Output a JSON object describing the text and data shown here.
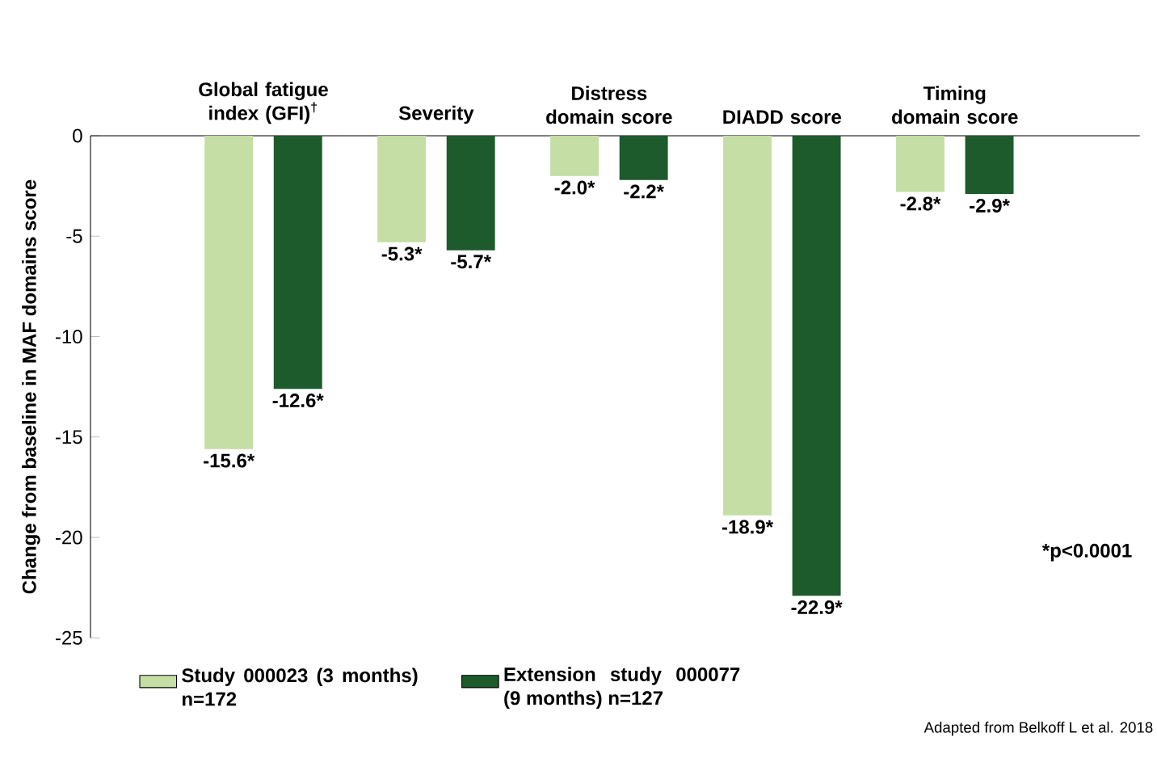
{
  "chart_data": {
    "type": "bar",
    "categories": [
      "Global fatigue index (GFI)$^{†}$",
      "Severity",
      "Distress domain score",
      "DIADD score",
      "Timing domain score"
    ],
    "ylabel": "Change from baseline in MAF domains score",
    "ylim": [
      -25,
      0
    ],
    "yticks": [
      0,
      -5,
      -10,
      -15,
      -20,
      -25
    ],
    "series": [
      {
        "name": "Study 000023 (3 months) n=172",
        "color": "#c5dea5",
        "values": [
          -15.6,
          -5.3,
          -2.0,
          -18.9,
          -2.8
        ],
        "value_labels": [
          "-15.6*",
          "-5.3*",
          "-2.0*",
          "-18.9*",
          "-2.8*"
        ]
      },
      {
        "name": "Extension study 000077 (9 months) n=127",
        "color": "#1d5a2c",
        "values": [
          -12.6,
          -5.7,
          -2.2,
          -22.9,
          -2.9
        ],
        "value_labels": [
          "-12.6*",
          "-5.7*",
          "-2.2*",
          "-22.9*",
          "-2.9*"
        ]
      }
    ],
    "legend": "bottom",
    "annotations": [
      "*p<0.0001",
      "Adapted from  Belkoff L et al. 2018"
    ]
  }
}
